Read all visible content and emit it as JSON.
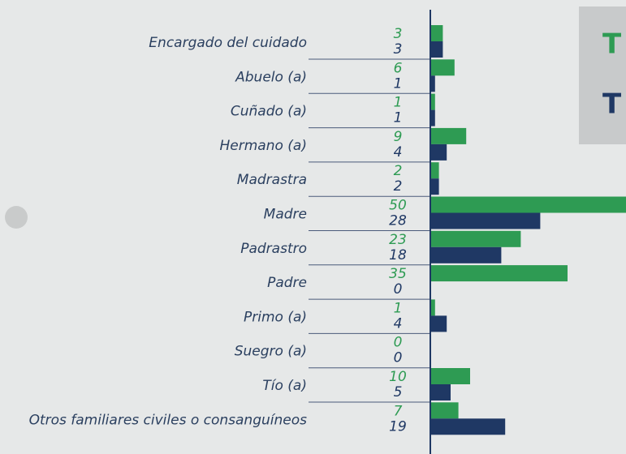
{
  "chart_data": {
    "type": "hbar",
    "categories": [
      "Encargado del cuidado",
      "Abuelo (a)",
      "Cuñado (a)",
      "Hermano (a)",
      "Madrastra",
      "Madre",
      "Padrastro",
      "Padre",
      "Primo (a)",
      "Suegro (a)",
      "Tío (a)",
      "Otros familiares civiles o consanguíneos"
    ],
    "series": [
      {
        "color": "#2e9b53",
        "values": [
          3,
          6,
          1,
          9,
          2,
          50,
          23,
          35,
          1,
          0,
          10,
          7
        ]
      },
      {
        "color": "#1f3864",
        "values": [
          3,
          1,
          1,
          4,
          2,
          28,
          18,
          0,
          4,
          0,
          5,
          19
        ]
      }
    ],
    "xlim": [
      0,
      50
    ],
    "annotations": [
      {
        "text": "T",
        "color": "#2e9b53"
      },
      {
        "text": "T",
        "color": "#1f3864"
      }
    ]
  }
}
